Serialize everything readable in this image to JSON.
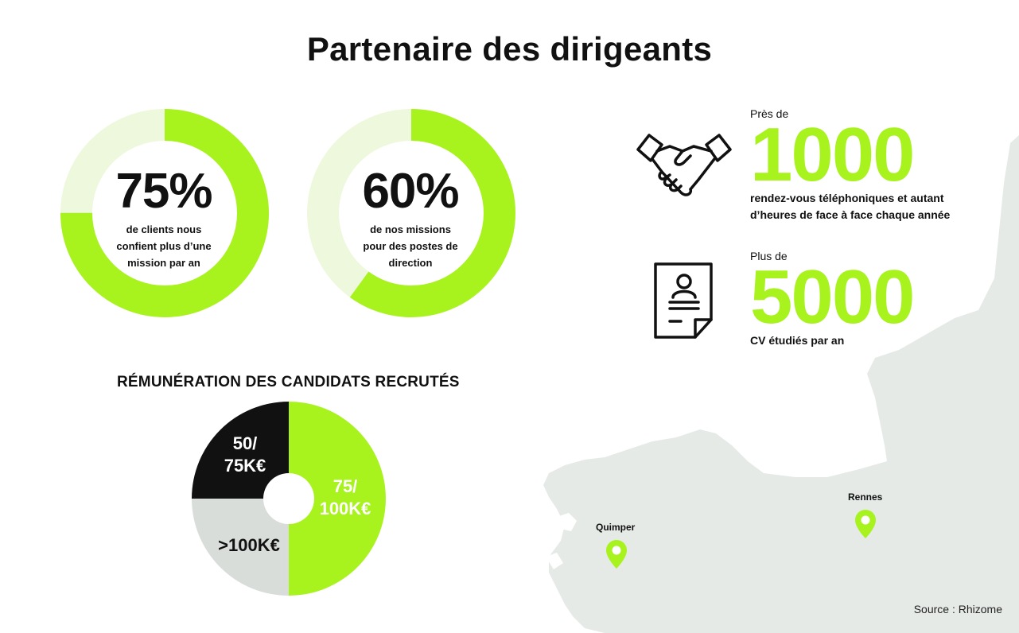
{
  "title": "Partenaire des dirigeants",
  "colors": {
    "accent": "#a8f21e",
    "accent_light": "#eef8dc",
    "dark": "#111111",
    "grey": "#d9ddda",
    "map": "#e5e9e6"
  },
  "donuts": [
    {
      "percent": 75,
      "label": "75%",
      "caption": [
        "de clients nous",
        "confient plus d’une",
        "mission par an"
      ]
    },
    {
      "percent": 60,
      "label": "60%",
      "caption": [
        "de nos missions",
        "pour des postes de",
        "direction"
      ]
    }
  ],
  "stats": [
    {
      "icon": "handshake-icon",
      "prefix": "Près de",
      "number": "1000",
      "caption": [
        "rendez-vous téléphoniques et autant",
        "d’heures de face à face chaque année"
      ]
    },
    {
      "icon": "cv-document-icon",
      "prefix": "Plus de",
      "number": "5000",
      "caption": [
        "CV étudiés par an"
      ]
    }
  ],
  "salary": {
    "title": "RÉMUNÉRATION DES CANDIDATS RECRUTÉS",
    "segments": [
      {
        "label_lines": [
          "75/",
          "100K€"
        ],
        "share": 50,
        "color": "#a8f21e",
        "text_color": "#ffffff"
      },
      {
        "label_lines": [
          ">100K€"
        ],
        "share": 25,
        "color": "#d9ddda",
        "text_color": "#111111"
      },
      {
        "label_lines": [
          "50/",
          "75K€"
        ],
        "share": 25,
        "color": "#111111",
        "text_color": "#ffffff"
      }
    ]
  },
  "map": {
    "cities": [
      {
        "name": "Quimper"
      },
      {
        "name": "Rennes"
      }
    ]
  },
  "source": "Source : Rhizome"
}
